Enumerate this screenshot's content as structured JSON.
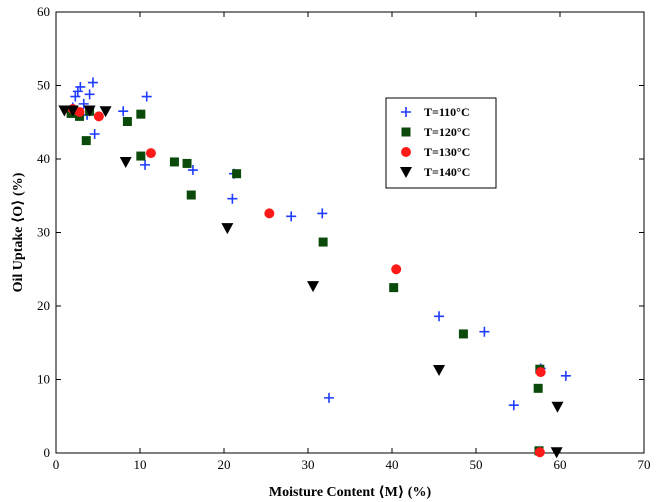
{
  "chart_data": {
    "type": "scatter",
    "xlabel": "Moisture Content ⟨M⟩ (%)",
    "ylabel": "Oil Uptake ⟨O⟩ (%)",
    "xlim": [
      0,
      70
    ],
    "ylim": [
      0,
      60
    ],
    "xticks": [
      0,
      10,
      20,
      30,
      40,
      50,
      60,
      70
    ],
    "yticks": [
      0,
      10,
      20,
      30,
      40,
      50,
      60
    ],
    "grid": false,
    "legend_position": "top-right",
    "series": [
      {
        "name": "T=110°C",
        "marker": "plus",
        "color": "#1f3cff",
        "points": [
          [
            1.5,
            46.5
          ],
          [
            2.0,
            47.0
          ],
          [
            2.3,
            48.5
          ],
          [
            2.6,
            49.2
          ],
          [
            2.9,
            49.8
          ],
          [
            3.3,
            47.5
          ],
          [
            3.7,
            46.0
          ],
          [
            4.0,
            48.8
          ],
          [
            4.4,
            50.4
          ],
          [
            4.6,
            43.4
          ],
          [
            8.0,
            46.5
          ],
          [
            10.8,
            48.5
          ],
          [
            10.6,
            39.2
          ],
          [
            16.3,
            38.5
          ],
          [
            21.0,
            34.6
          ],
          [
            21.2,
            38.0
          ],
          [
            28.0,
            32.2
          ],
          [
            31.7,
            32.6
          ],
          [
            32.5,
            7.5
          ],
          [
            45.6,
            18.6
          ],
          [
            51.0,
            16.5
          ],
          [
            54.5,
            6.5
          ],
          [
            57.7,
            11.5
          ],
          [
            60.7,
            10.5
          ]
        ]
      },
      {
        "name": "T=120°C",
        "marker": "square",
        "color": "#0b4a0b",
        "points": [
          [
            1.8,
            46.2
          ],
          [
            2.8,
            45.8
          ],
          [
            3.6,
            42.5
          ],
          [
            4.0,
            46.5
          ],
          [
            8.5,
            45.1
          ],
          [
            10.1,
            46.1
          ],
          [
            10.1,
            40.4
          ],
          [
            14.1,
            39.6
          ],
          [
            15.6,
            39.4
          ],
          [
            16.1,
            35.1
          ],
          [
            21.5,
            38.0
          ],
          [
            31.8,
            28.7
          ],
          [
            40.2,
            22.5
          ],
          [
            48.5,
            16.2
          ],
          [
            57.4,
            8.8
          ],
          [
            57.6,
            11.4
          ],
          [
            57.5,
            0.3
          ]
        ]
      },
      {
        "name": "T=130°C",
        "marker": "circle",
        "color": "#ff1a1a",
        "points": [
          [
            2.0,
            46.8
          ],
          [
            2.8,
            46.4
          ],
          [
            5.1,
            45.8
          ],
          [
            11.3,
            40.8
          ],
          [
            25.4,
            32.6
          ],
          [
            40.5,
            25.0
          ],
          [
            57.7,
            11.0
          ],
          [
            57.6,
            0.1
          ]
        ]
      },
      {
        "name": "T=140°C",
        "marker": "triangle-down",
        "color": "#000000",
        "points": [
          [
            1.0,
            46.6
          ],
          [
            2.0,
            46.6
          ],
          [
            4.0,
            46.6
          ],
          [
            5.9,
            46.5
          ],
          [
            8.3,
            39.6
          ],
          [
            20.4,
            30.6
          ],
          [
            30.6,
            22.7
          ],
          [
            45.6,
            11.3
          ],
          [
            59.7,
            6.3
          ],
          [
            59.6,
            0.1
          ]
        ]
      }
    ]
  }
}
